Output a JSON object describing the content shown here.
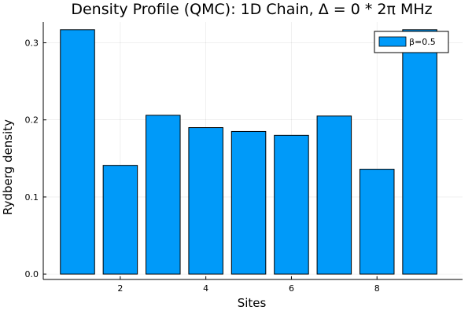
{
  "chart_data": {
    "type": "bar",
    "title": "Density Profile (QMC): 1D Chain, Δ = 0 * 2π MHz",
    "xlabel": "Sites",
    "ylabel": "Rydberg density",
    "x": [
      1,
      2,
      3,
      4,
      5,
      6,
      7,
      8,
      9
    ],
    "xlim": [
      0.2,
      10.0
    ],
    "ylim": [
      -0.007,
      0.327
    ],
    "xticks": [
      2,
      4,
      6,
      8
    ],
    "xtick_labels": [
      "2",
      "4",
      "6",
      "8"
    ],
    "yticks": [
      0.0,
      0.1,
      0.2,
      0.3
    ],
    "ytick_labels": [
      "0.0",
      "0.1",
      "0.2",
      "0.3"
    ],
    "grid": true,
    "legend_position": "top-right",
    "series": [
      {
        "name": "β=0.5",
        "color": "#009AF9",
        "values": [
          0.317,
          0.141,
          0.206,
          0.19,
          0.185,
          0.18,
          0.205,
          0.136,
          0.317
        ]
      }
    ]
  }
}
